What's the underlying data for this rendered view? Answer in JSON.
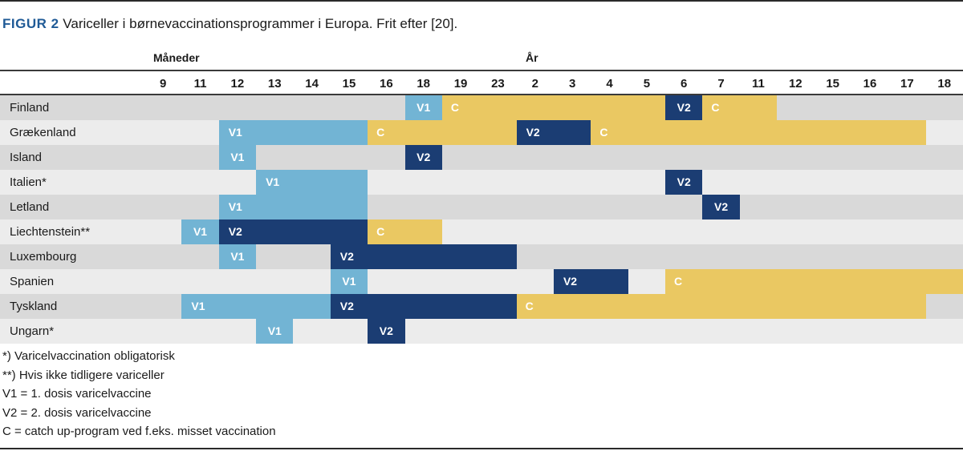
{
  "figure": {
    "label": "FIGUR 2",
    "title": "Variceller i børnevaccinationsprogrammer i Europa. Frit efter [20]."
  },
  "colors": {
    "V1": "#72b4d4",
    "V2": "#1b3d73",
    "C": "#eac862"
  },
  "chart_data": {
    "type": "table",
    "group_labels": [
      "Måneder",
      "År"
    ],
    "columns": [
      "9",
      "11",
      "12",
      "13",
      "14",
      "15",
      "16",
      "18",
      "19",
      "23",
      "2",
      "3",
      "4",
      "5",
      "6",
      "7",
      "11",
      "12",
      "15",
      "16",
      "17",
      "18"
    ],
    "rows": [
      {
        "country": "Finland",
        "segments": [
          {
            "type": "V1",
            "label": "V1",
            "start": "18",
            "end": "18"
          },
          {
            "type": "C",
            "label": "C",
            "start": "19",
            "end": "5"
          },
          {
            "type": "V2",
            "label": "V2",
            "start": "6",
            "end": "6"
          },
          {
            "type": "C",
            "label": "C",
            "start": "7",
            "end": "11"
          }
        ]
      },
      {
        "country": "Grækenland",
        "segments": [
          {
            "type": "V1",
            "label": "V1",
            "start": "12",
            "end": "15"
          },
          {
            "type": "C",
            "label": "C",
            "start": "16",
            "end": "23"
          },
          {
            "type": "V2",
            "label": "V2",
            "start": "2",
            "end": "3"
          },
          {
            "type": "C",
            "label": "C",
            "start": "4",
            "end": "17"
          }
        ]
      },
      {
        "country": "Island",
        "segments": [
          {
            "type": "V1",
            "label": "V1",
            "start": "12",
            "end": "12"
          },
          {
            "type": "V2",
            "label": "V2",
            "start": "18",
            "end": "18"
          }
        ]
      },
      {
        "country": "Italien*",
        "segments": [
          {
            "type": "V1",
            "label": "V1",
            "start": "13",
            "end": "15"
          },
          {
            "type": "V2",
            "label": "V2",
            "start": "6",
            "end": "6"
          }
        ]
      },
      {
        "country": "Letland",
        "segments": [
          {
            "type": "V1",
            "label": "V1",
            "start": "12",
            "end": "15"
          },
          {
            "type": "V2",
            "label": "V2",
            "start": "7",
            "end": "7"
          }
        ]
      },
      {
        "country": "Liechtenstein**",
        "segments": [
          {
            "type": "V1",
            "label": "V1",
            "start": "11",
            "end": "11"
          },
          {
            "type": "V2",
            "label": "V2",
            "start": "12",
            "end": "15"
          },
          {
            "type": "C",
            "label": "C",
            "start": "16",
            "end": "18"
          }
        ]
      },
      {
        "country": "Luxembourg",
        "segments": [
          {
            "type": "V1",
            "label": "V1",
            "start": "12",
            "end": "12"
          },
          {
            "type": "V2",
            "label": "V2",
            "start": "15",
            "end": "23"
          }
        ]
      },
      {
        "country": "Spanien",
        "segments": [
          {
            "type": "V1",
            "label": "V1",
            "start": "15",
            "end": "15"
          },
          {
            "type": "V2",
            "label": "V2",
            "start": "3",
            "end": "4"
          },
          {
            "type": "C",
            "label": "C",
            "start": "6",
            "end": "18"
          }
        ]
      },
      {
        "country": "Tyskland",
        "segments": [
          {
            "type": "V1",
            "label": "V1",
            "start": "11",
            "end": "14"
          },
          {
            "type": "V2",
            "label": "V2",
            "start": "15",
            "end": "23"
          },
          {
            "type": "C",
            "label": "C",
            "start": "2",
            "end": "17"
          }
        ]
      },
      {
        "country": "Ungarn*",
        "segments": [
          {
            "type": "V1",
            "label": "V1",
            "start": "13",
            "end": "13"
          },
          {
            "type": "V2",
            "label": "V2",
            "start": "16",
            "end": "16"
          }
        ]
      }
    ]
  },
  "notes": [
    "*) Varicelvaccination obligatorisk",
    "**) Hvis ikke tidligere variceller",
    "V1 = 1. dosis varicelvaccine",
    "V2 = 2. dosis varicelvaccine",
    "C = catch up-program ved f.eks. misset vaccination"
  ]
}
